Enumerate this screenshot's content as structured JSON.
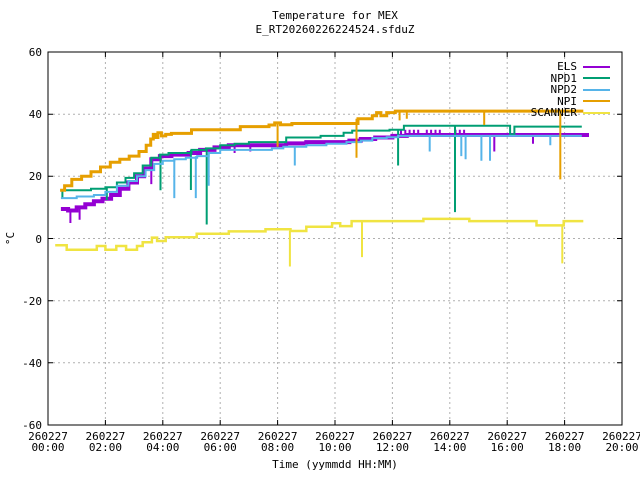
{
  "chart_data": {
    "type": "line",
    "title": "Temperature for MEX",
    "subtitle": "E_RT20260226224524.sfduZ",
    "xlabel": "Time (yymmdd HH:MM)",
    "ylabel": "°C",
    "ylim": [
      -60,
      60
    ],
    "xlim_hours": [
      0,
      20
    ],
    "grid": true,
    "legend_position": "top-right-inside",
    "grid_color": "#b0b0b0",
    "frame_color": "#000000",
    "y_ticks": [
      60,
      40,
      20,
      0,
      -20,
      -40,
      -60
    ],
    "x_ticks": [
      {
        "date": "260227",
        "time": "00:00"
      },
      {
        "date": "260227",
        "time": "02:00"
      },
      {
        "date": "260227",
        "time": "04:00"
      },
      {
        "date": "260227",
        "time": "06:00"
      },
      {
        "date": "260227",
        "time": "08:00"
      },
      {
        "date": "260227",
        "time": "10:00"
      },
      {
        "date": "260227",
        "time": "12:00"
      },
      {
        "date": "260227",
        "time": "14:00"
      },
      {
        "date": "260227",
        "time": "16:00"
      },
      {
        "date": "260227",
        "time": "18:00"
      },
      {
        "date": "260227",
        "time": "20:00"
      }
    ],
    "series": [
      {
        "name": "ELS",
        "color": "#9400d3",
        "width": 4,
        "points": [
          [
            0.45,
            9.5
          ],
          [
            0.7,
            9
          ],
          [
            1.0,
            10
          ],
          [
            1.3,
            11
          ],
          [
            1.6,
            12
          ],
          [
            1.9,
            12.8
          ],
          [
            2.2,
            14
          ],
          [
            2.5,
            16
          ],
          [
            2.8,
            18
          ],
          [
            3.1,
            20
          ],
          [
            3.35,
            22.5
          ],
          [
            3.6,
            25.5
          ],
          [
            3.9,
            26.5
          ],
          [
            4.3,
            27
          ],
          [
            4.9,
            27.5
          ],
          [
            5.3,
            28.5
          ],
          [
            5.8,
            29.3
          ],
          [
            6.3,
            30
          ],
          [
            8.3,
            30.6
          ],
          [
            9.0,
            31
          ],
          [
            10.5,
            31.5
          ],
          [
            10.9,
            32
          ],
          [
            11.4,
            32.5
          ],
          [
            12.0,
            33
          ],
          [
            12.5,
            33.3
          ],
          [
            18.85,
            33.3
          ]
        ],
        "spikes": [
          [
            0.78,
            9,
            5
          ],
          [
            1.1,
            10,
            6
          ],
          [
            3.6,
            25.5,
            17.5
          ],
          [
            6.5,
            30,
            27.5
          ],
          [
            7.05,
            30,
            28
          ],
          [
            12.3,
            33.3,
            35
          ],
          [
            12.45,
            33.3,
            35
          ],
          [
            12.6,
            33.3,
            35
          ],
          [
            12.75,
            33.3,
            35
          ],
          [
            12.9,
            33.3,
            35
          ],
          [
            13.2,
            33.3,
            35
          ],
          [
            13.35,
            33.3,
            35
          ],
          [
            13.5,
            33.3,
            35
          ],
          [
            13.65,
            33.3,
            35
          ],
          [
            14.2,
            33.3,
            35
          ],
          [
            14.35,
            33.3,
            35
          ],
          [
            14.5,
            33.3,
            35
          ],
          [
            15.55,
            33.3,
            28
          ],
          [
            16.9,
            33.3,
            30.5
          ]
        ]
      },
      {
        "name": "NPD1",
        "color": "#009e73",
        "width": 2,
        "points": [
          [
            0.45,
            15.5
          ],
          [
            1.0,
            15.5
          ],
          [
            1.5,
            16
          ],
          [
            2.0,
            16.5
          ],
          [
            2.4,
            18
          ],
          [
            2.7,
            19.5
          ],
          [
            3.0,
            21
          ],
          [
            3.3,
            23.5
          ],
          [
            3.6,
            26
          ],
          [
            3.9,
            27
          ],
          [
            4.2,
            27.5
          ],
          [
            5.0,
            28.5
          ],
          [
            5.5,
            29
          ],
          [
            6.0,
            30
          ],
          [
            6.5,
            30.5
          ],
          [
            7.0,
            31
          ],
          [
            8.3,
            32.5
          ],
          [
            9.5,
            33
          ],
          [
            10.3,
            34
          ],
          [
            10.6,
            34.7
          ],
          [
            11.9,
            35
          ],
          [
            12.4,
            36.3
          ],
          [
            15.95,
            36.3
          ],
          [
            16.1,
            33.5
          ],
          [
            16.25,
            36
          ],
          [
            18.6,
            36
          ]
        ],
        "spikes": [
          [
            0.5,
            15.5,
            13
          ],
          [
            2.05,
            16.5,
            12.4
          ],
          [
            3.92,
            27,
            15.5
          ],
          [
            4.98,
            28.5,
            15.6
          ],
          [
            5.53,
            29,
            4.5
          ],
          [
            12.2,
            35,
            23.5
          ],
          [
            14.18,
            36.3,
            8.5
          ]
        ]
      },
      {
        "name": "NPD2",
        "color": "#56b4e9",
        "width": 2,
        "points": [
          [
            0.45,
            13
          ],
          [
            1.0,
            13.5
          ],
          [
            1.6,
            14
          ],
          [
            2.0,
            15
          ],
          [
            2.4,
            17
          ],
          [
            2.8,
            18.5
          ],
          [
            3.1,
            20
          ],
          [
            3.4,
            22
          ],
          [
            3.7,
            24
          ],
          [
            4.0,
            25
          ],
          [
            4.4,
            25.5
          ],
          [
            4.8,
            26
          ],
          [
            5.2,
            26.5
          ],
          [
            5.6,
            27.5
          ],
          [
            6.0,
            28.5
          ],
          [
            7.5,
            28.5
          ],
          [
            7.8,
            29
          ],
          [
            8.2,
            29.5
          ],
          [
            9.0,
            30
          ],
          [
            9.7,
            30.5
          ],
          [
            10.4,
            31
          ],
          [
            10.9,
            31.5
          ],
          [
            11.3,
            32.3
          ],
          [
            11.8,
            32.6
          ],
          [
            12.2,
            33
          ],
          [
            18.6,
            33
          ]
        ],
        "spikes": [
          [
            4.4,
            25.5,
            13
          ],
          [
            5.15,
            26.5,
            13
          ],
          [
            5.6,
            27.5,
            17
          ],
          [
            8.6,
            29.5,
            23.5
          ],
          [
            13.3,
            33,
            28
          ],
          [
            14.4,
            33,
            26.5
          ],
          [
            14.55,
            33,
            25.5
          ],
          [
            15.1,
            33,
            25
          ],
          [
            15.4,
            33,
            25
          ],
          [
            17.5,
            33,
            30
          ]
        ]
      },
      {
        "name": "NPI",
        "color": "#e69f00",
        "width": 3,
        "points": [
          [
            0.42,
            15.5
          ],
          [
            0.58,
            17
          ],
          [
            0.83,
            19
          ],
          [
            1.17,
            20
          ],
          [
            1.5,
            21.5
          ],
          [
            1.83,
            23
          ],
          [
            2.17,
            24.5
          ],
          [
            2.5,
            25.5
          ],
          [
            2.83,
            26.5
          ],
          [
            3.17,
            28
          ],
          [
            3.42,
            30
          ],
          [
            3.58,
            32
          ],
          [
            3.67,
            33.5
          ],
          [
            3.75,
            32.5
          ],
          [
            3.83,
            34
          ],
          [
            3.95,
            33
          ],
          [
            4.1,
            33.5
          ],
          [
            4.3,
            33.8
          ],
          [
            5.0,
            35
          ],
          [
            6.7,
            36
          ],
          [
            7.7,
            36.5
          ],
          [
            7.9,
            37.2
          ],
          [
            8.1,
            36.6
          ],
          [
            8.5,
            37
          ],
          [
            10.8,
            38.5
          ],
          [
            11.3,
            39.5
          ],
          [
            11.45,
            40.5
          ],
          [
            11.6,
            39.5
          ],
          [
            11.8,
            40.5
          ],
          [
            12.1,
            41
          ],
          [
            18.65,
            41
          ]
        ],
        "spikes": [
          [
            8.0,
            37,
            29.5
          ],
          [
            10.75,
            38.5,
            26
          ],
          [
            12.25,
            41,
            38
          ],
          [
            12.5,
            41,
            38.5
          ],
          [
            15.2,
            41,
            36.5
          ],
          [
            17.85,
            41,
            19
          ]
        ]
      },
      {
        "name": "SCANNER",
        "color": "#f0e442",
        "width": 2.5,
        "points": [
          [
            0.25,
            -2.2
          ],
          [
            0.65,
            -3.6
          ],
          [
            1.65,
            -3.6
          ],
          [
            1.7,
            -2.4
          ],
          [
            1.95,
            -2.4
          ],
          [
            2.0,
            -3.6
          ],
          [
            2.3,
            -3.6
          ],
          [
            2.38,
            -2.4
          ],
          [
            2.65,
            -2.4
          ],
          [
            2.72,
            -3.6
          ],
          [
            3.0,
            -3.6
          ],
          [
            3.1,
            -2.4
          ],
          [
            3.3,
            -1.2
          ],
          [
            3.55,
            -1.2
          ],
          [
            3.62,
            0.3
          ],
          [
            3.8,
            -0.8
          ],
          [
            4.1,
            0.4
          ],
          [
            5.1,
            0.4
          ],
          [
            5.18,
            1.5
          ],
          [
            6.2,
            1.5
          ],
          [
            6.3,
            2.3
          ],
          [
            7.5,
            2.3
          ],
          [
            7.58,
            3.0
          ],
          [
            8.3,
            3.0
          ],
          [
            8.45,
            2.4
          ],
          [
            8.9,
            2.4
          ],
          [
            9.0,
            3.8
          ],
          [
            9.8,
            3.8
          ],
          [
            9.9,
            4.9
          ],
          [
            10.1,
            4.9
          ],
          [
            10.18,
            4.0
          ],
          [
            10.5,
            4.0
          ],
          [
            10.58,
            5.6
          ],
          [
            13.0,
            5.6
          ],
          [
            13.08,
            6.3
          ],
          [
            14.6,
            6.3
          ],
          [
            14.68,
            5.6
          ],
          [
            16.95,
            5.6
          ],
          [
            17.02,
            4.2
          ],
          [
            17.9,
            4.2
          ],
          [
            17.97,
            5.6
          ],
          [
            18.65,
            5.6
          ]
        ],
        "spikes": [
          [
            8.43,
            2.4,
            -9
          ],
          [
            10.94,
            5.6,
            -6
          ],
          [
            17.92,
            4.2,
            -8
          ]
        ]
      }
    ]
  }
}
